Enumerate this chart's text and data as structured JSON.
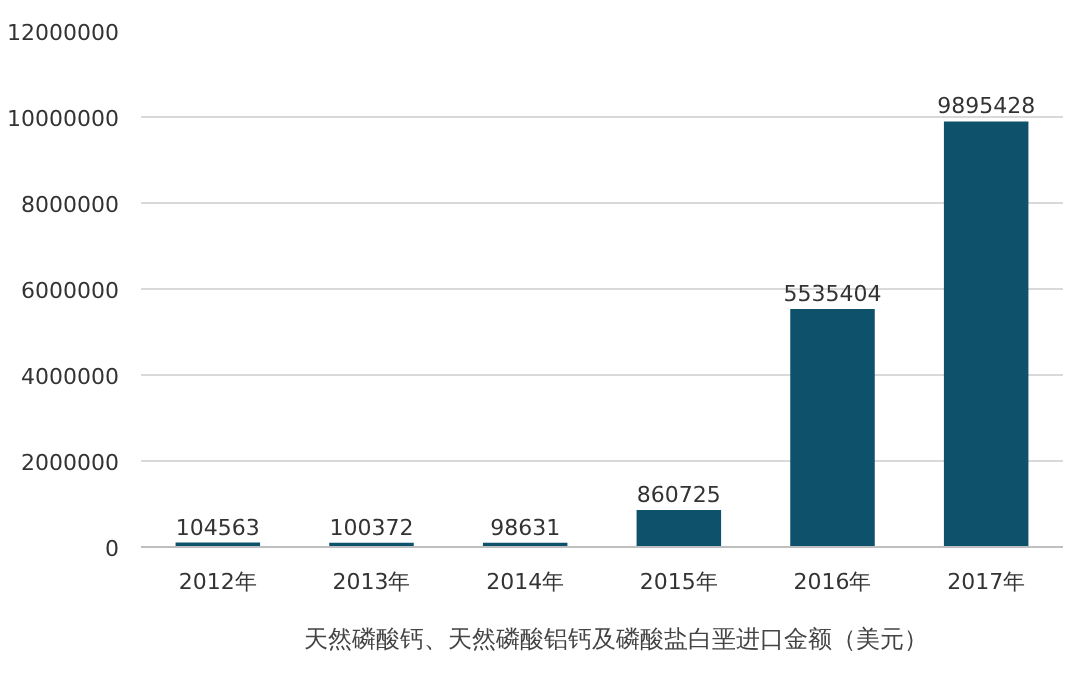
{
  "chart_data": {
    "type": "bar",
    "categories": [
      "2012年",
      "2013年",
      "2014年",
      "2015年",
      "2016年",
      "2017年"
    ],
    "series": [
      {
        "name": "天然磷酸钙、天然磷酸铝钙及磷酸盐白垩进口金额（美元）",
        "color": "#0e516b",
        "values": [
          104563,
          100372,
          98631,
          860725,
          5535404,
          9895428
        ]
      }
    ],
    "ylim": [
      0,
      12000000
    ],
    "yticks": [
      0,
      2000000,
      4000000,
      6000000,
      8000000,
      10000000,
      12000000
    ],
    "grid": "y",
    "legend": "bottom",
    "data_labels": true
  }
}
